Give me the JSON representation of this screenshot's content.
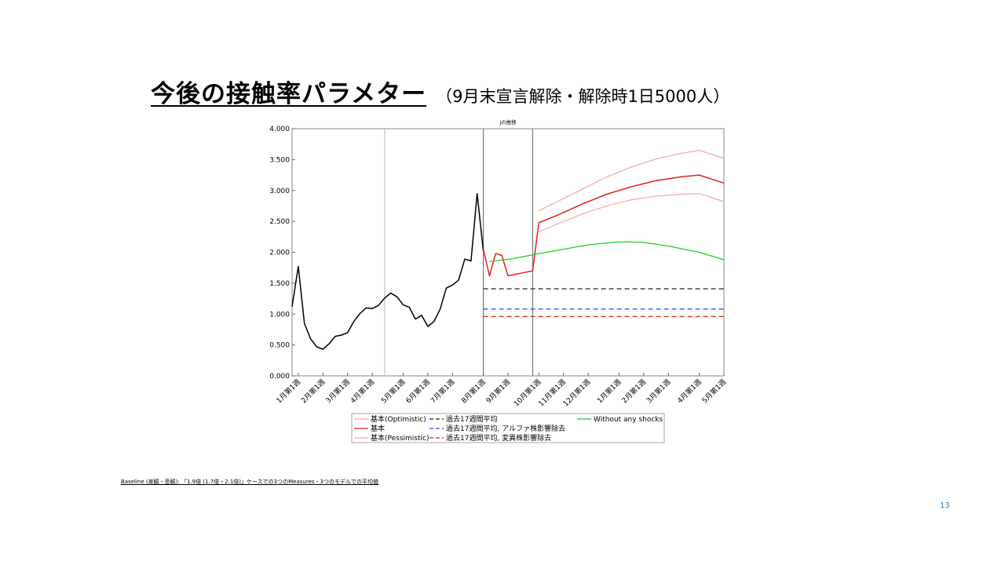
{
  "slide": {
    "title": "今後の接触率パラメター",
    "subtitle": "（9月末宣言解除・解除時1日5000人）",
    "footnote": "Baseline (楽観・悲観): 「1.9倍 (1.7倍・2.1倍)」ケースでの3つのMeasures・3つのモデルでの平均値",
    "page_number": "13"
  },
  "chart_data": {
    "type": "line",
    "title": "jの推移",
    "ylim": [
      0,
      4
    ],
    "y_ticks": [
      "0.000",
      "0.500",
      "1.000",
      "1.500",
      "2.000",
      "2.500",
      "3.000",
      "3.500",
      "4.000"
    ],
    "x_axis": {
      "range_weeks": [
        -1,
        69
      ]
    },
    "x_ticks": [
      {
        "label": "1月第1週",
        "week": 0
      },
      {
        "label": "2月第1週",
        "week": 4
      },
      {
        "label": "3月第1週",
        "week": 8
      },
      {
        "label": "4月第1週",
        "week": 12
      },
      {
        "label": "5月第1週",
        "week": 17
      },
      {
        "label": "6月第1週",
        "week": 21
      },
      {
        "label": "7月第1週",
        "week": 25
      },
      {
        "label": "8月第1週",
        "week": 30
      },
      {
        "label": "9月第1週",
        "week": 34
      },
      {
        "label": "10月第1週",
        "week": 39
      },
      {
        "label": "11月第1週",
        "week": 43
      },
      {
        "label": "12月第1週",
        "week": 47
      },
      {
        "label": "1月第1週",
        "week": 52
      },
      {
        "label": "2月第1週",
        "week": 56
      },
      {
        "label": "3月第1週",
        "week": 60
      },
      {
        "label": "4月第1週",
        "week": 65
      },
      {
        "label": "5月第1週",
        "week": 69
      }
    ],
    "vertical_markers_week": [
      14,
      30,
      38
    ],
    "grid": false,
    "legend_position": "bottom",
    "legend": [
      {
        "label": "基本(Optimistic)",
        "color": "#f4a6a6",
        "style": "solid"
      },
      {
        "label": "基本",
        "color": "#e3221c",
        "style": "solid"
      },
      {
        "label": "基本(Pessimistic)",
        "color": "#f4a6a6",
        "style": "solid"
      },
      {
        "label": "過去17週間平均",
        "color": "#222222",
        "style": "dashed"
      },
      {
        "label": "過去17週間平均, アルファ株影響除去",
        "color": "#3344dd",
        "style": "dashed"
      },
      {
        "label": "過去17週間平均, 変異株影響除去",
        "color": "#e3221c",
        "style": "dashed"
      },
      {
        "label": "Without any shocks",
        "color": "#22cc22",
        "style": "solid"
      }
    ],
    "series": [
      {
        "name": "",
        "color": "#000000",
        "style": "solid",
        "width": 1.5,
        "points": [
          [
            -1,
            1.12
          ],
          [
            0,
            1.77
          ],
          [
            1,
            0.85
          ],
          [
            2,
            0.6
          ],
          [
            3,
            0.47
          ],
          [
            4,
            0.43
          ],
          [
            5,
            0.52
          ],
          [
            6,
            0.64
          ],
          [
            7,
            0.66
          ],
          [
            8,
            0.7
          ],
          [
            9,
            0.88
          ],
          [
            10,
            1.01
          ],
          [
            11,
            1.1
          ],
          [
            12,
            1.09
          ],
          [
            13,
            1.14
          ],
          [
            14,
            1.26
          ],
          [
            15,
            1.34
          ],
          [
            16,
            1.28
          ],
          [
            17,
            1.15
          ],
          [
            18,
            1.11
          ],
          [
            19,
            0.92
          ],
          [
            20,
            0.98
          ],
          [
            21,
            0.8
          ],
          [
            22,
            0.88
          ],
          [
            23,
            1.08
          ],
          [
            24,
            1.42
          ],
          [
            25,
            1.47
          ],
          [
            26,
            1.55
          ],
          [
            27,
            1.89
          ],
          [
            28,
            1.86
          ],
          [
            29,
            2.95
          ],
          [
            30,
            2.02
          ]
        ]
      },
      {
        "name": "基本",
        "color": "#e3221c",
        "style": "solid",
        "width": 1.5,
        "points": [
          [
            30,
            2.05
          ],
          [
            31,
            1.62
          ],
          [
            32,
            1.98
          ],
          [
            33,
            1.95
          ],
          [
            34,
            1.62
          ],
          [
            35,
            1.64
          ],
          [
            36,
            1.66
          ],
          [
            37,
            1.68
          ],
          [
            38,
            1.7
          ],
          [
            39,
            2.48
          ],
          [
            42,
            2.6
          ],
          [
            46,
            2.78
          ],
          [
            50,
            2.94
          ],
          [
            54,
            3.06
          ],
          [
            58,
            3.16
          ],
          [
            62,
            3.22
          ],
          [
            65,
            3.25
          ],
          [
            69,
            3.12
          ]
        ]
      },
      {
        "name": "基本(Optimistic)",
        "color": "#f4a6a6",
        "style": "solid",
        "width": 1.2,
        "points": [
          [
            39,
            2.67
          ],
          [
            42,
            2.82
          ],
          [
            46,
            3.02
          ],
          [
            50,
            3.22
          ],
          [
            54,
            3.38
          ],
          [
            58,
            3.51
          ],
          [
            62,
            3.6
          ],
          [
            65,
            3.65
          ],
          [
            69,
            3.52
          ]
        ]
      },
      {
        "name": "基本(Pessimistic)",
        "color": "#f4a6a6",
        "style": "solid",
        "width": 1.2,
        "points": [
          [
            39,
            2.33
          ],
          [
            42,
            2.46
          ],
          [
            46,
            2.62
          ],
          [
            50,
            2.75
          ],
          [
            54,
            2.85
          ],
          [
            58,
            2.91
          ],
          [
            62,
            2.94
          ],
          [
            65,
            2.95
          ],
          [
            69,
            2.82
          ]
        ]
      },
      {
        "name": "Without any shocks",
        "color": "#22cc22",
        "style": "solid",
        "width": 1.2,
        "points": [
          [
            31,
            1.85
          ],
          [
            35,
            1.9
          ],
          [
            39,
            1.98
          ],
          [
            43,
            2.05
          ],
          [
            47,
            2.12
          ],
          [
            51,
            2.16
          ],
          [
            53,
            2.17
          ],
          [
            56,
            2.16
          ],
          [
            60,
            2.1
          ],
          [
            65,
            2.0
          ],
          [
            69,
            1.88
          ]
        ]
      },
      {
        "name": "過去17週間平均",
        "color": "#222222",
        "style": "dashed",
        "width": 1.2,
        "points": [
          [
            30,
            1.41
          ],
          [
            69,
            1.41
          ]
        ]
      },
      {
        "name": "過去17週間平均, アルファ株影響除去",
        "color": "#3344dd",
        "style": "dashed",
        "width": 1.2,
        "points": [
          [
            30,
            1.08
          ],
          [
            69,
            1.08
          ]
        ]
      },
      {
        "name": "過去17週間平均, 変異株影響除去",
        "color": "#e3221c",
        "style": "dashed",
        "width": 1.2,
        "points": [
          [
            30,
            0.96
          ],
          [
            69,
            0.96
          ]
        ]
      }
    ]
  }
}
